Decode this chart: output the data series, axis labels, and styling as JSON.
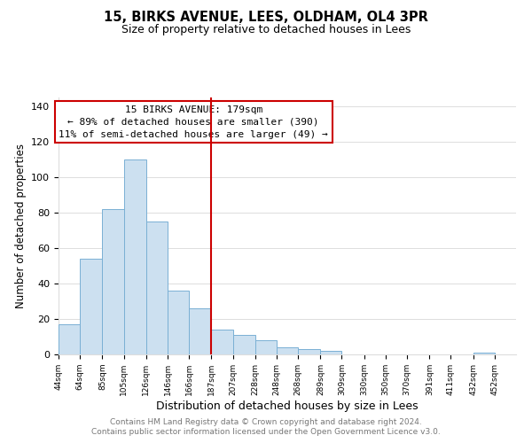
{
  "title": "15, BIRKS AVENUE, LEES, OLDHAM, OL4 3PR",
  "subtitle": "Size of property relative to detached houses in Lees",
  "xlabel": "Distribution of detached houses by size in Lees",
  "ylabel": "Number of detached properties",
  "bar_left_edges": [
    44,
    64,
    85,
    105,
    126,
    146,
    166,
    187,
    207,
    228,
    248,
    268,
    289,
    309,
    330,
    350,
    370,
    391,
    411,
    432
  ],
  "bar_heights": [
    17,
    54,
    82,
    110,
    75,
    36,
    26,
    14,
    11,
    8,
    4,
    3,
    2,
    0,
    0,
    0,
    0,
    0,
    0,
    1
  ],
  "bar_widths": [
    20,
    21,
    20,
    21,
    20,
    20,
    21,
    20,
    21,
    20,
    20,
    21,
    20,
    21,
    20,
    20,
    21,
    20,
    21,
    20
  ],
  "bar_color": "#cce0f0",
  "bar_edgecolor": "#7ab0d4",
  "vline_x": 187,
  "vline_color": "#cc0000",
  "annotation_line1": "15 BIRKS AVENUE: 179sqm",
  "annotation_line2": "← 89% of detached houses are smaller (390)",
  "annotation_line3": "11% of semi-detached houses are larger (49) →",
  "annotation_box_edgecolor": "#cc0000",
  "annotation_box_facecolor": "#ffffff",
  "ylim": [
    0,
    145
  ],
  "yticks": [
    0,
    20,
    40,
    60,
    80,
    100,
    120,
    140
  ],
  "tick_labels": [
    "44sqm",
    "64sqm",
    "85sqm",
    "105sqm",
    "126sqm",
    "146sqm",
    "166sqm",
    "187sqm",
    "207sqm",
    "228sqm",
    "248sqm",
    "268sqm",
    "289sqm",
    "309sqm",
    "330sqm",
    "350sqm",
    "370sqm",
    "391sqm",
    "411sqm",
    "432sqm",
    "452sqm"
  ],
  "tick_positions": [
    44,
    64,
    85,
    105,
    126,
    146,
    166,
    187,
    207,
    228,
    248,
    268,
    289,
    309,
    330,
    350,
    370,
    391,
    411,
    432,
    452
  ],
  "xlim_left": 44,
  "xlim_right": 472,
  "footer_line1": "Contains HM Land Registry data © Crown copyright and database right 2024.",
  "footer_line2": "Contains public sector information licensed under the Open Government Licence v3.0.",
  "background_color": "#ffffff",
  "plot_background_color": "#ffffff",
  "grid_color": "#dddddd",
  "title_fontsize": 10.5,
  "subtitle_fontsize": 9,
  "ylabel_fontsize": 8.5,
  "xlabel_fontsize": 9
}
